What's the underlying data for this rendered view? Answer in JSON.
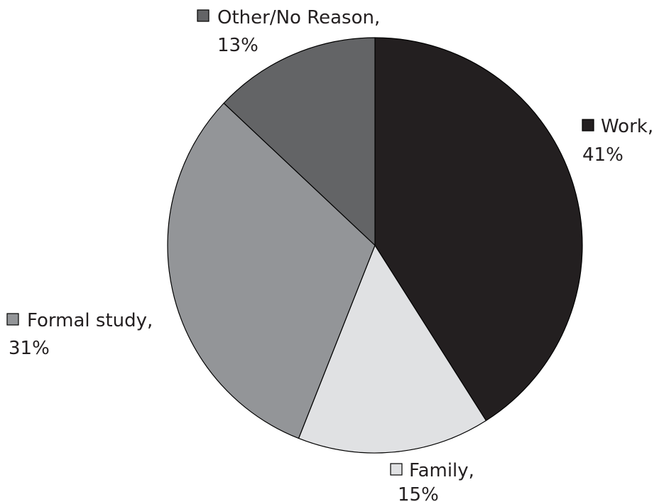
{
  "chart_data": {
    "type": "pie",
    "start_angle_deg": 0,
    "direction": "clockwise",
    "slices": [
      {
        "label": "Work,",
        "value": 41,
        "value_label": "41%",
        "color": "#231f20"
      },
      {
        "label": "Family,",
        "value": 15,
        "value_label": "15%",
        "color": "#e0e1e3"
      },
      {
        "label": "Formal study,",
        "value": 31,
        "value_label": "31%",
        "color": "#939598"
      },
      {
        "label": "Other/No Reason,",
        "value": 13,
        "value_label": "13%",
        "color": "#636466"
      }
    ]
  }
}
